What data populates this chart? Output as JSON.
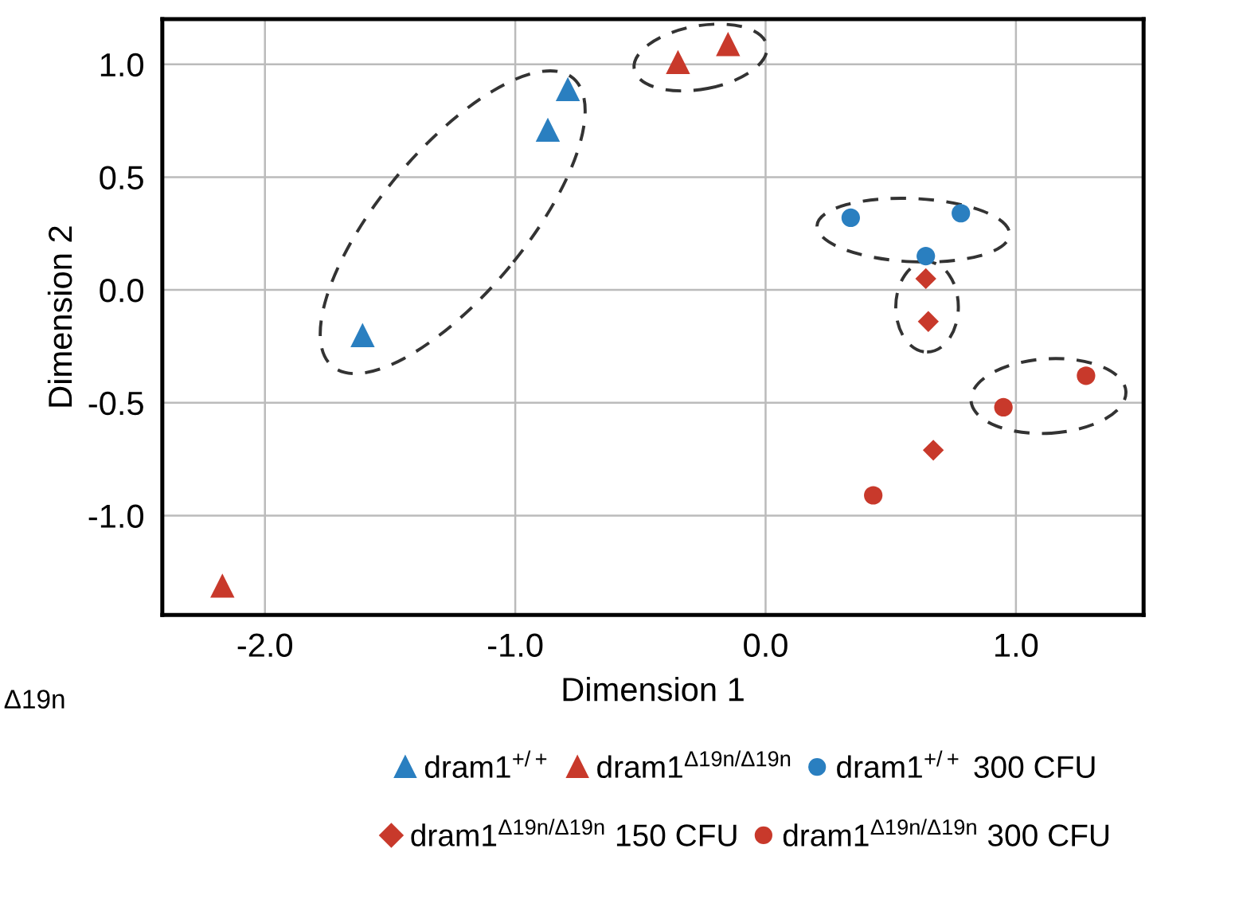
{
  "chart_data": {
    "type": "scatter",
    "xlabel": "Dimension 1",
    "ylabel": "Dimension 2",
    "xlim": [
      -2.41,
      1.51
    ],
    "ylim": [
      -1.44,
      1.2
    ],
    "xticks": [
      {
        "value": -2,
        "label": "-2.0"
      },
      {
        "value": -1,
        "label": "-1.0"
      },
      {
        "value": 0,
        "label": "0.0"
      },
      {
        "value": 1,
        "label": "1.0"
      }
    ],
    "yticks": [
      {
        "value": -1,
        "label": "-1.0"
      },
      {
        "value": -0.5,
        "label": "-0.5"
      },
      {
        "value": 0,
        "label": "0.0"
      },
      {
        "value": 0.5,
        "label": "0.5"
      },
      {
        "value": 1,
        "label": "1.0"
      }
    ],
    "grid": true,
    "legend": "bottom",
    "annotations": [
      "Δ19n"
    ],
    "series": [
      {
        "name": "dram1$^{+/+}$",
        "color": "#2a7fc0",
        "marker": "triangle",
        "x": [
          -1.61,
          -0.87,
          -0.79
        ],
        "values": [
          -0.2,
          0.71,
          0.89
        ]
      },
      {
        "name": "dram1$^{Δ19n/Δ19n}$",
        "color": "#c8392b",
        "marker": "triangle",
        "x": [
          -2.17,
          -0.35,
          -0.15
        ],
        "values": [
          -1.31,
          1.01,
          1.09
        ]
      },
      {
        "name": "dram1$^{+/+}$ 300 CFU",
        "color": "#2a7fc0",
        "marker": "circle",
        "x": [
          0.34,
          0.78,
          0.64
        ],
        "values": [
          0.32,
          0.34,
          0.15
        ]
      },
      {
        "name": "dram1$^{Δ19n/Δ19n}$ 150 CFU",
        "color": "#c8392b",
        "marker": "diamond",
        "x": [
          0.64,
          0.65,
          0.67
        ],
        "values": [
          0.05,
          -0.14,
          -0.71
        ]
      },
      {
        "name": "dram1$^{Δ19n/Δ19n}$ 300 CFU",
        "color": "#c8392b",
        "marker": "circle",
        "x": [
          1.28,
          0.95,
          0.43
        ],
        "values": [
          -0.38,
          -0.52,
          -0.91
        ]
      }
    ]
  }
}
